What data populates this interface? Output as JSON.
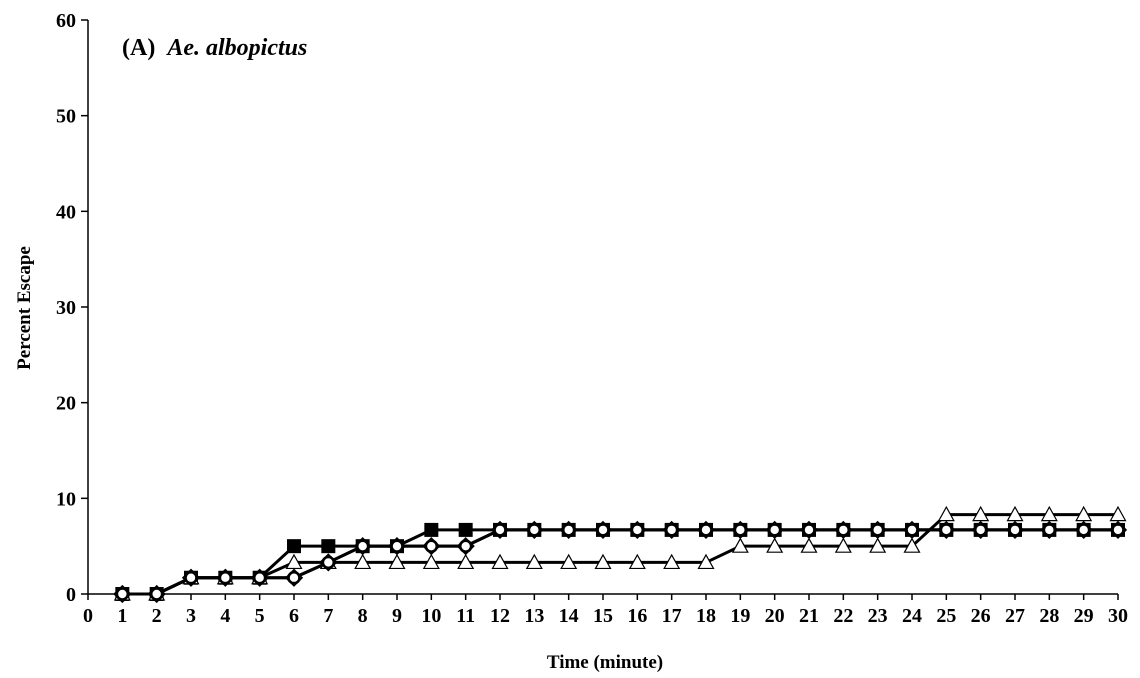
{
  "chart_data": {
    "type": "line",
    "title_prefix": "(A)",
    "title_species": "Ae. albopictus",
    "xlabel": "Time (minute)",
    "ylabel": "Percent Escape",
    "xlim": [
      0,
      30
    ],
    "ylim": [
      0,
      60
    ],
    "x_ticks": [
      0,
      1,
      2,
      3,
      4,
      5,
      6,
      7,
      8,
      9,
      10,
      11,
      12,
      13,
      14,
      15,
      16,
      17,
      18,
      19,
      20,
      21,
      22,
      23,
      24,
      25,
      26,
      27,
      28,
      29,
      30
    ],
    "y_ticks": [
      0,
      10,
      20,
      30,
      40,
      50,
      60
    ],
    "grid": false,
    "legend": "none",
    "x": [
      1,
      2,
      3,
      4,
      5,
      6,
      7,
      8,
      9,
      10,
      11,
      12,
      13,
      14,
      15,
      16,
      17,
      18,
      19,
      20,
      21,
      22,
      23,
      24,
      25,
      26,
      27,
      28,
      29,
      30
    ],
    "series": [
      {
        "marker": "square-filled",
        "color": "#000000",
        "values": [
          0,
          0,
          1.7,
          1.7,
          1.7,
          5,
          5,
          5,
          5,
          6.7,
          6.7,
          6.7,
          6.7,
          6.7,
          6.7,
          6.7,
          6.7,
          6.7,
          6.7,
          6.7,
          6.7,
          6.7,
          6.7,
          6.7,
          6.7,
          6.7,
          6.7,
          6.7,
          6.7,
          6.7
        ]
      },
      {
        "marker": "triangle-open",
        "color": "#000000",
        "values": [
          0,
          0,
          1.7,
          1.7,
          1.7,
          3.3,
          3.3,
          3.3,
          3.3,
          3.3,
          3.3,
          3.3,
          3.3,
          3.3,
          3.3,
          3.3,
          3.3,
          3.3,
          5,
          5,
          5,
          5,
          5,
          5,
          8.3,
          8.3,
          8.3,
          8.3,
          8.3,
          8.3
        ]
      },
      {
        "marker": "diamond-open",
        "color": "#000000",
        "values": [
          0,
          0,
          1.7,
          1.7,
          1.7,
          1.7,
          3.3,
          5,
          5,
          5,
          5,
          6.7,
          6.7,
          6.7,
          6.7,
          6.7,
          6.7,
          6.7,
          6.7,
          6.7,
          6.7,
          6.7,
          6.7,
          6.7,
          6.7,
          6.7,
          6.7,
          6.7,
          6.7,
          6.7
        ]
      },
      {
        "marker": "circle-open",
        "color": "#000000",
        "values": [
          0,
          0,
          1.7,
          1.7,
          1.7,
          1.7,
          3.3,
          5,
          5,
          5,
          5,
          6.7,
          6.7,
          6.7,
          6.7,
          6.7,
          6.7,
          6.7,
          6.7,
          6.7,
          6.7,
          6.7,
          6.7,
          6.7,
          6.7,
          6.7,
          6.7,
          6.7,
          6.7,
          6.7
        ]
      }
    ]
  }
}
